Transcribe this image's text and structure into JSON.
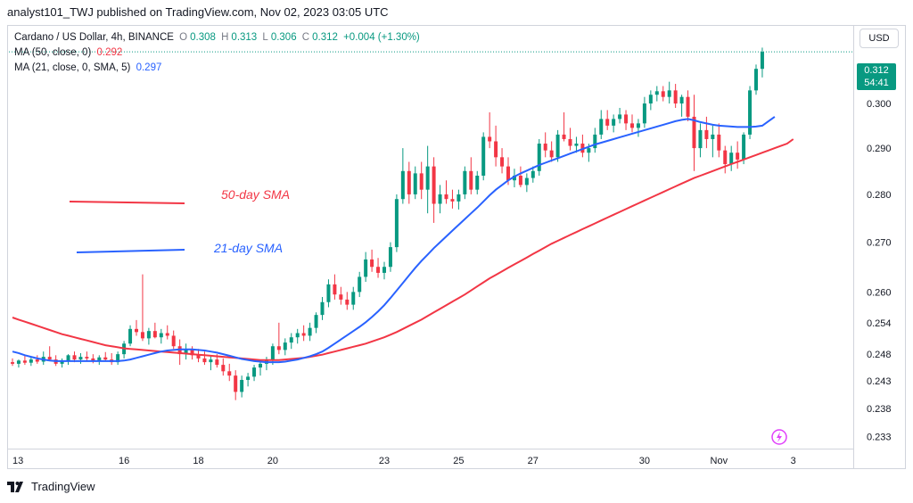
{
  "header": {
    "publish_line": "analyst101_TWJ published on TradingView.com, Nov 02, 2023 03:05 UTC"
  },
  "legend": {
    "symbol": "Cardano / US Dollar, 4h, BINANCE",
    "o_label": "O",
    "o_value": "0.308",
    "h_label": "H",
    "h_value": "0.313",
    "l_label": "L",
    "l_value": "0.306",
    "c_label": "C",
    "c_value": "0.312",
    "change": "+0.004 (+1.30%)",
    "ma50_label": "MA (50, close, 0)",
    "ma50_value": "0.292",
    "ma21_label": "MA (21, close, 0, SMA, 5)",
    "ma21_value": "0.297"
  },
  "currency_button": "USD",
  "last_price": {
    "value": "0.312",
    "countdown": "54:41"
  },
  "footer": {
    "brand": "TradingView"
  },
  "colors": {
    "up": "#089981",
    "down": "#f23645",
    "sma50": "#f23645",
    "sma21": "#2962ff",
    "grid": "#d1d4dc"
  },
  "chart_data": {
    "type": "candlestick",
    "title": "",
    "scale": "log",
    "ylim": [
      0.231,
      0.318
    ],
    "y_ticks": [
      0.233,
      0.238,
      0.243,
      0.248,
      0.254,
      0.26,
      0.27,
      0.28,
      0.29,
      0.3
    ],
    "y_tick_labels": [
      "0.233",
      "0.238",
      "0.243",
      "0.248",
      "0.254",
      "0.260",
      "0.270",
      "0.280",
      "0.290",
      "0.300"
    ],
    "x_ticks": [
      {
        "label": "13",
        "index": 0
      },
      {
        "label": "16",
        "index": 18
      },
      {
        "label": "18",
        "index": 30
      },
      {
        "label": "20",
        "index": 42
      },
      {
        "label": "23",
        "index": 60
      },
      {
        "label": "25",
        "index": 72
      },
      {
        "label": "27",
        "index": 84
      },
      {
        "label": "30",
        "index": 102
      },
      {
        "label": "Nov",
        "index": 114
      },
      {
        "label": "3",
        "index": 126
      }
    ],
    "annotations": [
      {
        "text": "50-day SMA",
        "color": "#f23645"
      },
      {
        "text": "21-day SMA",
        "color": "#2962ff"
      }
    ],
    "candles": [
      [
        0.2465,
        0.2472,
        0.2458,
        0.2462
      ],
      [
        0.2462,
        0.247,
        0.2455,
        0.2468
      ],
      [
        0.2468,
        0.2478,
        0.246,
        0.2464
      ],
      [
        0.2464,
        0.2475,
        0.2458,
        0.247
      ],
      [
        0.247,
        0.2478,
        0.2462,
        0.2466
      ],
      [
        0.2466,
        0.2485,
        0.246,
        0.2475
      ],
      [
        0.2475,
        0.2495,
        0.2468,
        0.247
      ],
      [
        0.247,
        0.2478,
        0.2458,
        0.2462
      ],
      [
        0.2462,
        0.2472,
        0.2455,
        0.2468
      ],
      [
        0.2468,
        0.248,
        0.246,
        0.2478
      ],
      [
        0.2478,
        0.2485,
        0.2465,
        0.247
      ],
      [
        0.247,
        0.2482,
        0.2462,
        0.2475
      ],
      [
        0.2475,
        0.2485,
        0.2468,
        0.2472
      ],
      [
        0.2472,
        0.248,
        0.2463,
        0.2468
      ],
      [
        0.2468,
        0.2478,
        0.246,
        0.2474
      ],
      [
        0.2474,
        0.2484,
        0.2466,
        0.247
      ],
      [
        0.247,
        0.2482,
        0.246,
        0.2465
      ],
      [
        0.2465,
        0.2485,
        0.246,
        0.248
      ],
      [
        0.248,
        0.2505,
        0.2472,
        0.25
      ],
      [
        0.25,
        0.2535,
        0.2495,
        0.2528
      ],
      [
        0.2528,
        0.2545,
        0.2515,
        0.2522
      ],
      [
        0.2522,
        0.2635,
        0.2505,
        0.251
      ],
      [
        0.251,
        0.253,
        0.2498,
        0.2524
      ],
      [
        0.2524,
        0.254,
        0.251,
        0.2512
      ],
      [
        0.2512,
        0.2528,
        0.25,
        0.252
      ],
      [
        0.252,
        0.2535,
        0.2508,
        0.2515
      ],
      [
        0.2515,
        0.2525,
        0.249,
        0.2495
      ],
      [
        0.2495,
        0.2508,
        0.246,
        0.248
      ],
      [
        0.248,
        0.25,
        0.247,
        0.2488
      ],
      [
        0.2488,
        0.2495,
        0.247,
        0.2478
      ],
      [
        0.2478,
        0.249,
        0.2465,
        0.2472
      ],
      [
        0.2472,
        0.2485,
        0.246,
        0.2465
      ],
      [
        0.2465,
        0.2478,
        0.245,
        0.247
      ],
      [
        0.247,
        0.248,
        0.2455,
        0.246
      ],
      [
        0.246,
        0.2472,
        0.244,
        0.2448
      ],
      [
        0.2448,
        0.2462,
        0.243,
        0.244
      ],
      [
        0.244,
        0.245,
        0.2395,
        0.241
      ],
      [
        0.241,
        0.244,
        0.24,
        0.2432
      ],
      [
        0.2432,
        0.2445,
        0.242,
        0.2438
      ],
      [
        0.2438,
        0.246,
        0.243,
        0.2455
      ],
      [
        0.2455,
        0.247,
        0.244,
        0.2462
      ],
      [
        0.2462,
        0.2475,
        0.245,
        0.2468
      ],
      [
        0.2468,
        0.25,
        0.246,
        0.2495
      ],
      [
        0.2495,
        0.254,
        0.248,
        0.2488
      ],
      [
        0.2488,
        0.251,
        0.2478,
        0.2502
      ],
      [
        0.2502,
        0.252,
        0.249,
        0.2512
      ],
      [
        0.2512,
        0.2528,
        0.25,
        0.252
      ],
      [
        0.252,
        0.2535,
        0.2505,
        0.2515
      ],
      [
        0.2515,
        0.254,
        0.2505,
        0.253
      ],
      [
        0.253,
        0.256,
        0.252,
        0.2555
      ],
      [
        0.2555,
        0.259,
        0.2545,
        0.258
      ],
      [
        0.258,
        0.2625,
        0.257,
        0.2615
      ],
      [
        0.2615,
        0.2635,
        0.2585,
        0.2595
      ],
      [
        0.2595,
        0.261,
        0.2575,
        0.2585
      ],
      [
        0.2585,
        0.26,
        0.2565,
        0.2575
      ],
      [
        0.2575,
        0.261,
        0.2565,
        0.26
      ],
      [
        0.26,
        0.264,
        0.259,
        0.263
      ],
      [
        0.263,
        0.268,
        0.262,
        0.2665
      ],
      [
        0.2665,
        0.2685,
        0.264,
        0.265
      ],
      [
        0.265,
        0.2668,
        0.2628,
        0.2638
      ],
      [
        0.2638,
        0.266,
        0.2625,
        0.265
      ],
      [
        0.265,
        0.27,
        0.264,
        0.269
      ],
      [
        0.269,
        0.28,
        0.268,
        0.279
      ],
      [
        0.279,
        0.29,
        0.278,
        0.285
      ],
      [
        0.285,
        0.287,
        0.278,
        0.28
      ],
      [
        0.28,
        0.286,
        0.279,
        0.2845
      ],
      [
        0.2845,
        0.287,
        0.279,
        0.281
      ],
      [
        0.281,
        0.2905,
        0.276,
        0.286
      ],
      [
        0.286,
        0.288,
        0.274,
        0.278
      ],
      [
        0.278,
        0.282,
        0.276,
        0.28
      ],
      [
        0.28,
        0.283,
        0.278,
        0.279
      ],
      [
        0.279,
        0.281,
        0.277,
        0.2785
      ],
      [
        0.2785,
        0.281,
        0.2768,
        0.28
      ],
      [
        0.28,
        0.286,
        0.279,
        0.285
      ],
      [
        0.285,
        0.288,
        0.28,
        0.281
      ],
      [
        0.281,
        0.285,
        0.28,
        0.284
      ],
      [
        0.284,
        0.2935,
        0.283,
        0.2925
      ],
      [
        0.2925,
        0.298,
        0.29,
        0.2915
      ],
      [
        0.2915,
        0.295,
        0.286,
        0.288
      ],
      [
        0.288,
        0.29,
        0.2845,
        0.286
      ],
      [
        0.286,
        0.288,
        0.282,
        0.283
      ],
      [
        0.283,
        0.2855,
        0.2815,
        0.284
      ],
      [
        0.284,
        0.286,
        0.2815,
        0.282
      ],
      [
        0.282,
        0.2845,
        0.2805,
        0.2835
      ],
      [
        0.2835,
        0.286,
        0.2825,
        0.285
      ],
      [
        0.285,
        0.292,
        0.284,
        0.291
      ],
      [
        0.291,
        0.2935,
        0.288,
        0.2895
      ],
      [
        0.2895,
        0.2915,
        0.287,
        0.288
      ],
      [
        0.288,
        0.294,
        0.287,
        0.293
      ],
      [
        0.293,
        0.298,
        0.2915,
        0.292
      ],
      [
        0.292,
        0.2945,
        0.2895,
        0.2905
      ],
      [
        0.2905,
        0.2925,
        0.289,
        0.291
      ],
      [
        0.291,
        0.293,
        0.288,
        0.289
      ],
      [
        0.289,
        0.291,
        0.287,
        0.29
      ],
      [
        0.29,
        0.2945,
        0.289,
        0.293
      ],
      [
        0.293,
        0.2985,
        0.292,
        0.2965
      ],
      [
        0.2965,
        0.2985,
        0.294,
        0.295
      ],
      [
        0.295,
        0.2975,
        0.2935,
        0.2965
      ],
      [
        0.2965,
        0.299,
        0.2955,
        0.2975
      ],
      [
        0.2975,
        0.2985,
        0.294,
        0.2955
      ],
      [
        0.2955,
        0.2975,
        0.2935,
        0.2945
      ],
      [
        0.2945,
        0.2965,
        0.2925,
        0.2955
      ],
      [
        0.2955,
        0.3015,
        0.2945,
        0.3
      ],
      [
        0.3,
        0.303,
        0.2985,
        0.302
      ],
      [
        0.302,
        0.304,
        0.3005,
        0.3028
      ],
      [
        0.3028,
        0.304,
        0.3005,
        0.3015
      ],
      [
        0.3015,
        0.305,
        0.3,
        0.303
      ],
      [
        0.303,
        0.3045,
        0.299,
        0.3
      ],
      [
        0.3,
        0.302,
        0.297,
        0.3015
      ],
      [
        0.3015,
        0.303,
        0.296,
        0.297
      ],
      [
        0.297,
        0.302,
        0.285,
        0.29
      ],
      [
        0.29,
        0.2955,
        0.288,
        0.294
      ],
      [
        0.294,
        0.297,
        0.29,
        0.292
      ],
      [
        0.292,
        0.295,
        0.288,
        0.293
      ],
      [
        0.293,
        0.2955,
        0.288,
        0.2895
      ],
      [
        0.2895,
        0.2905,
        0.2845,
        0.2865
      ],
      [
        0.2865,
        0.2905,
        0.285,
        0.289
      ],
      [
        0.289,
        0.2915,
        0.2855,
        0.2875
      ],
      [
        0.2875,
        0.2935,
        0.2865,
        0.293
      ],
      [
        0.293,
        0.304,
        0.292,
        0.303
      ],
      [
        0.303,
        0.309,
        0.302,
        0.308
      ],
      [
        0.308,
        0.313,
        0.306,
        0.312
      ]
    ],
    "sma50": [
      0.255,
      0.2546,
      0.2542,
      0.2538,
      0.2534,
      0.253,
      0.2526,
      0.2522,
      0.2518,
      0.2515,
      0.2512,
      0.2509,
      0.2506,
      0.2503,
      0.25,
      0.2497,
      0.2495,
      0.2493,
      0.2491,
      0.249,
      0.2489,
      0.2488,
      0.2487,
      0.2486,
      0.2485,
      0.2484,
      0.2483,
      0.2482,
      0.2481,
      0.248,
      0.2479,
      0.2478,
      0.2477,
      0.2476,
      0.2475,
      0.2474,
      0.2473,
      0.2472,
      0.2471,
      0.247,
      0.2469,
      0.2469,
      0.2469,
      0.2469,
      0.247,
      0.2471,
      0.2472,
      0.2473,
      0.2475,
      0.2477,
      0.2479,
      0.2482,
      0.2485,
      0.2488,
      0.2491,
      0.2494,
      0.2497,
      0.25,
      0.2504,
      0.2508,
      0.2512,
      0.2517,
      0.2522,
      0.2528,
      0.2534,
      0.254,
      0.2546,
      0.2553,
      0.256,
      0.2567,
      0.2574,
      0.2581,
      0.2588,
      0.2595,
      0.2603,
      0.2611,
      0.2619,
      0.2627,
      0.2634,
      0.2641,
      0.2648,
      0.2655,
      0.2662,
      0.2669,
      0.2676,
      0.2683,
      0.269,
      0.2697,
      0.2703,
      0.2709,
      0.2715,
      0.2721,
      0.2727,
      0.2733,
      0.2739,
      0.2745,
      0.2751,
      0.2757,
      0.2763,
      0.2769,
      0.2775,
      0.2781,
      0.2787,
      0.2793,
      0.2799,
      0.2805,
      0.2811,
      0.2817,
      0.2823,
      0.2829,
      0.2835,
      0.284,
      0.2845,
      0.285,
      0.2855,
      0.286,
      0.2865,
      0.287,
      0.2875,
      0.288,
      0.2885,
      0.289,
      0.2895,
      0.29,
      0.2905,
      0.291,
      0.292
    ],
    "sma21": [
      0.2485,
      0.2482,
      0.2478,
      0.2475,
      0.2472,
      0.247,
      0.2468,
      0.2467,
      0.2467,
      0.2467,
      0.2467,
      0.2467,
      0.2467,
      0.2467,
      0.2467,
      0.2467,
      0.2467,
      0.2467,
      0.2468,
      0.247,
      0.2473,
      0.2476,
      0.2479,
      0.2482,
      0.2485,
      0.2487,
      0.2488,
      0.2489,
      0.2489,
      0.2489,
      0.2488,
      0.2487,
      0.2485,
      0.2483,
      0.248,
      0.2477,
      0.2474,
      0.2471,
      0.2469,
      0.2467,
      0.2466,
      0.2465,
      0.2465,
      0.2465,
      0.2466,
      0.2468,
      0.247,
      0.2473,
      0.2476,
      0.248,
      0.2485,
      0.2492,
      0.25,
      0.2508,
      0.2516,
      0.2524,
      0.2532,
      0.2541,
      0.2551,
      0.2562,
      0.2574,
      0.2588,
      0.2603,
      0.2618,
      0.2633,
      0.2648,
      0.2662,
      0.2675,
      0.2688,
      0.27,
      0.2712,
      0.2724,
      0.2736,
      0.2748,
      0.276,
      0.2772,
      0.2785,
      0.2798,
      0.281,
      0.282,
      0.283,
      0.2838,
      0.2845,
      0.2851,
      0.2857,
      0.2863,
      0.2868,
      0.2873,
      0.2878,
      0.2883,
      0.2888,
      0.2893,
      0.2898,
      0.2903,
      0.2908,
      0.2912,
      0.2916,
      0.292,
      0.2924,
      0.2928,
      0.2932,
      0.2936,
      0.294,
      0.2944,
      0.2948,
      0.2952,
      0.2956,
      0.296,
      0.2963,
      0.2965,
      0.2962,
      0.2958,
      0.2955,
      0.2952,
      0.295,
      0.2949,
      0.2948,
      0.2947,
      0.2947,
      0.2947,
      0.2948,
      0.295,
      0.296,
      0.297
    ]
  }
}
